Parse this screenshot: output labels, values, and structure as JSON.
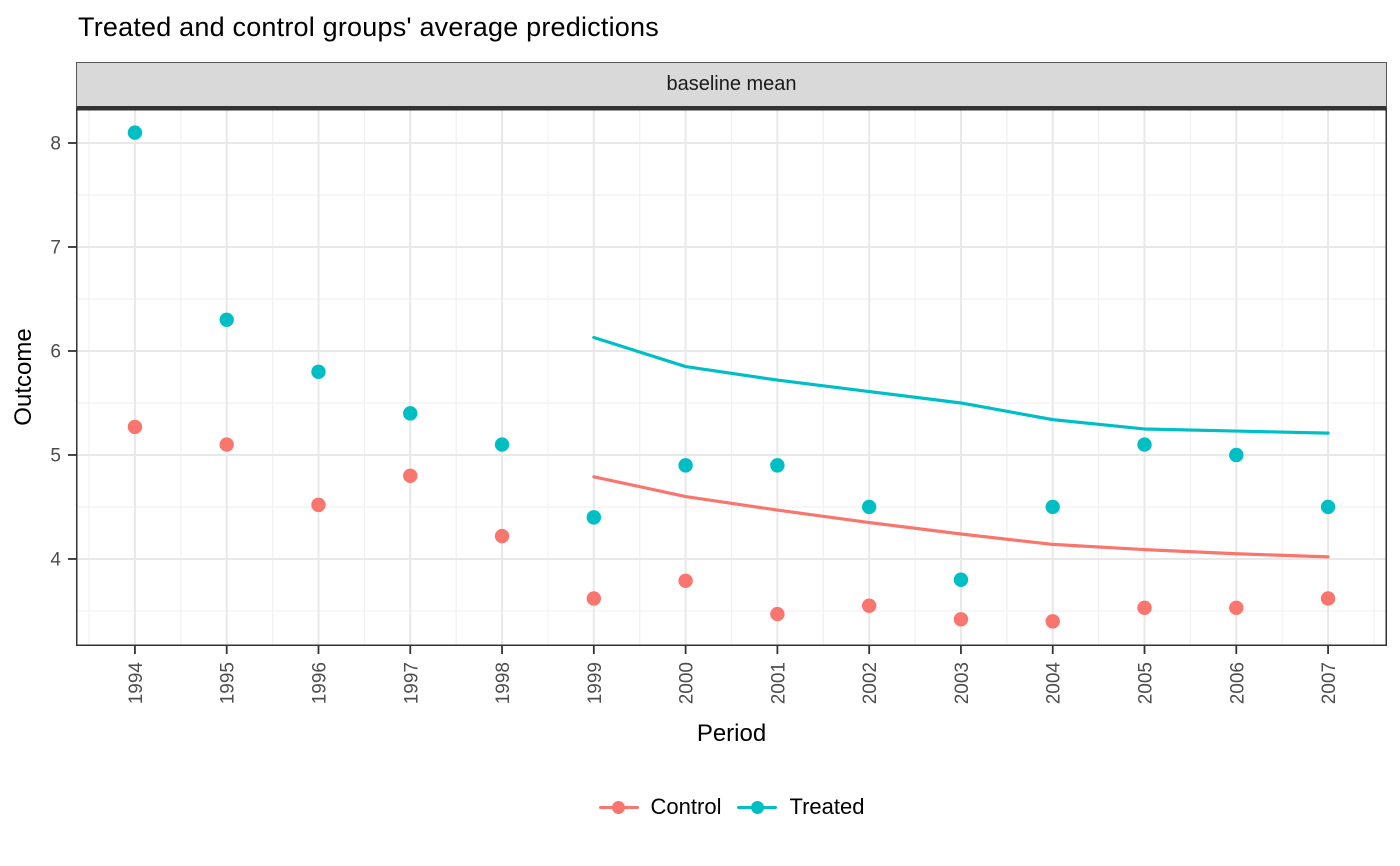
{
  "title": "Treated and control groups' average predictions",
  "facet_label": "baseline mean",
  "axes": {
    "xlabel": "Period",
    "ylabel": "Outcome"
  },
  "colors": {
    "control": "#F8766D",
    "treated": "#00BFC4",
    "panel_border": "#333333",
    "strip_bg": "#d9d9d9",
    "grid_major": "#e8e8e8",
    "grid_minor": "#f1f1f1",
    "tick_label": "#4d4d4d"
  },
  "legend": {
    "items": [
      {
        "label": "Control",
        "color": "#F8766D"
      },
      {
        "label": "Treated",
        "color": "#00BFC4"
      }
    ]
  },
  "chart_data": {
    "type": "scatter",
    "title": "Treated and control groups' average predictions",
    "facet_label": "baseline mean",
    "xlabel": "Period",
    "ylabel": "Outcome",
    "legend_position": "bottom",
    "grid": true,
    "x_ticks": [
      1994,
      1995,
      1996,
      1997,
      1998,
      1999,
      2000,
      2001,
      2002,
      2003,
      2004,
      2005,
      2006,
      2007
    ],
    "y_ticks": [
      4,
      5,
      6,
      7,
      8
    ],
    "x_minor": [
      1993.5,
      1994.5,
      1995.5,
      1996.5,
      1997.5,
      1998.5,
      1999.5,
      2000.5,
      2001.5,
      2002.5,
      2003.5,
      2004.5,
      2005.5,
      2006.5,
      2007.5
    ],
    "y_minor": [
      3.5,
      4.5,
      5.5,
      6.5,
      7.5
    ],
    "x_domain": [
      1993.358,
      2007.642
    ],
    "y_domain": [
      3.163,
      8.327
    ],
    "series": [
      {
        "name": "Control observed",
        "kind": "points",
        "color": "#F8766D",
        "x": [
          1994,
          1995,
          1996,
          1997,
          1998,
          1999,
          2000,
          2001,
          2002,
          2003,
          2004,
          2005,
          2006,
          2007
        ],
        "y": [
          5.27,
          5.1,
          4.52,
          4.8,
          4.22,
          3.62,
          3.79,
          3.47,
          3.55,
          3.42,
          3.4,
          3.53,
          3.53,
          3.62
        ]
      },
      {
        "name": "Treated observed",
        "kind": "points",
        "color": "#00BFC4",
        "x": [
          1994,
          1995,
          1996,
          1997,
          1998,
          1999,
          2000,
          2001,
          2002,
          2003,
          2004,
          2005,
          2006,
          2007
        ],
        "y": [
          8.1,
          6.3,
          5.8,
          5.4,
          5.1,
          4.4,
          4.9,
          4.9,
          4.5,
          3.8,
          4.5,
          5.1,
          5.0,
          4.5
        ]
      },
      {
        "name": "Control predicted",
        "kind": "line",
        "color": "#F8766D",
        "x": [
          1999,
          2000,
          2001,
          2002,
          2003,
          2004,
          2005,
          2006,
          2007
        ],
        "y": [
          4.79,
          4.6,
          4.47,
          4.35,
          4.24,
          4.14,
          4.09,
          4.05,
          4.02
        ]
      },
      {
        "name": "Treated predicted",
        "kind": "line",
        "color": "#00BFC4",
        "x": [
          1999,
          2000,
          2001,
          2002,
          2003,
          2004,
          2005,
          2006,
          2007
        ],
        "y": [
          6.13,
          5.85,
          5.72,
          5.61,
          5.5,
          5.34,
          5.25,
          5.23,
          5.21
        ]
      }
    ]
  }
}
